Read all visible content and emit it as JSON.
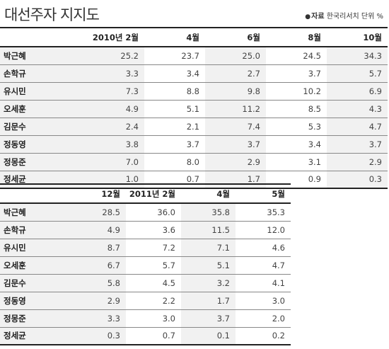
{
  "title": "대선주자 지지도",
  "source": {
    "bullet": "●",
    "label": "자료",
    "text": " 한국리서치  단위 %"
  },
  "tables": [
    {
      "headers": [
        "2010년 2월",
        "4월",
        "6월",
        "8월",
        "10월"
      ],
      "rows": [
        {
          "name": "박근혜",
          "values": [
            "25.2",
            "23.7",
            "25.0",
            "24.5",
            "34.3"
          ]
        },
        {
          "name": "손학규",
          "values": [
            "3.3",
            "3.4",
            "2.7",
            "3.7",
            "5.7"
          ]
        },
        {
          "name": "유시민",
          "values": [
            "7.3",
            "8.8",
            "9.8",
            "10.2",
            "6.9"
          ]
        },
        {
          "name": "오세훈",
          "values": [
            "4.9",
            "5.1",
            "11.2",
            "8.5",
            "4.3"
          ]
        },
        {
          "name": "김문수",
          "values": [
            "2.4",
            "2.1",
            "7.4",
            "5.3",
            "4.7"
          ]
        },
        {
          "name": "정동영",
          "values": [
            "3.8",
            "3.7",
            "3.7",
            "3.4",
            "3.7"
          ]
        },
        {
          "name": "정몽준",
          "values": [
            "7.0",
            "8.0",
            "2.9",
            "3.1",
            "2.9"
          ]
        },
        {
          "name": "정세균",
          "values": [
            "1.0",
            "0.7",
            "1.7",
            "0.9",
            "0.3"
          ]
        }
      ]
    },
    {
      "headers": [
        "12월",
        "2011년 2월",
        "4월",
        "5월"
      ],
      "rows": [
        {
          "name": "박근혜",
          "values": [
            "28.5",
            "36.0",
            "35.8",
            "35.3"
          ]
        },
        {
          "name": "손학규",
          "values": [
            "4.9",
            "3.6",
            "11.5",
            "12.0"
          ]
        },
        {
          "name": "유시민",
          "values": [
            "8.7",
            "7.2",
            "7.1",
            "4.6"
          ]
        },
        {
          "name": "오세훈",
          "values": [
            "6.7",
            "5.7",
            "5.1",
            "4.7"
          ]
        },
        {
          "name": "김문수",
          "values": [
            "5.8",
            "4.5",
            "3.2",
            "4.1"
          ]
        },
        {
          "name": "정동영",
          "values": [
            "2.9",
            "2.2",
            "1.7",
            "3.0"
          ]
        },
        {
          "name": "정몽준",
          "values": [
            "3.3",
            "3.0",
            "3.7",
            "2.0"
          ]
        },
        {
          "name": "정세균",
          "values": [
            "0.3",
            "0.7",
            "0.1",
            "0.2"
          ]
        }
      ]
    }
  ]
}
